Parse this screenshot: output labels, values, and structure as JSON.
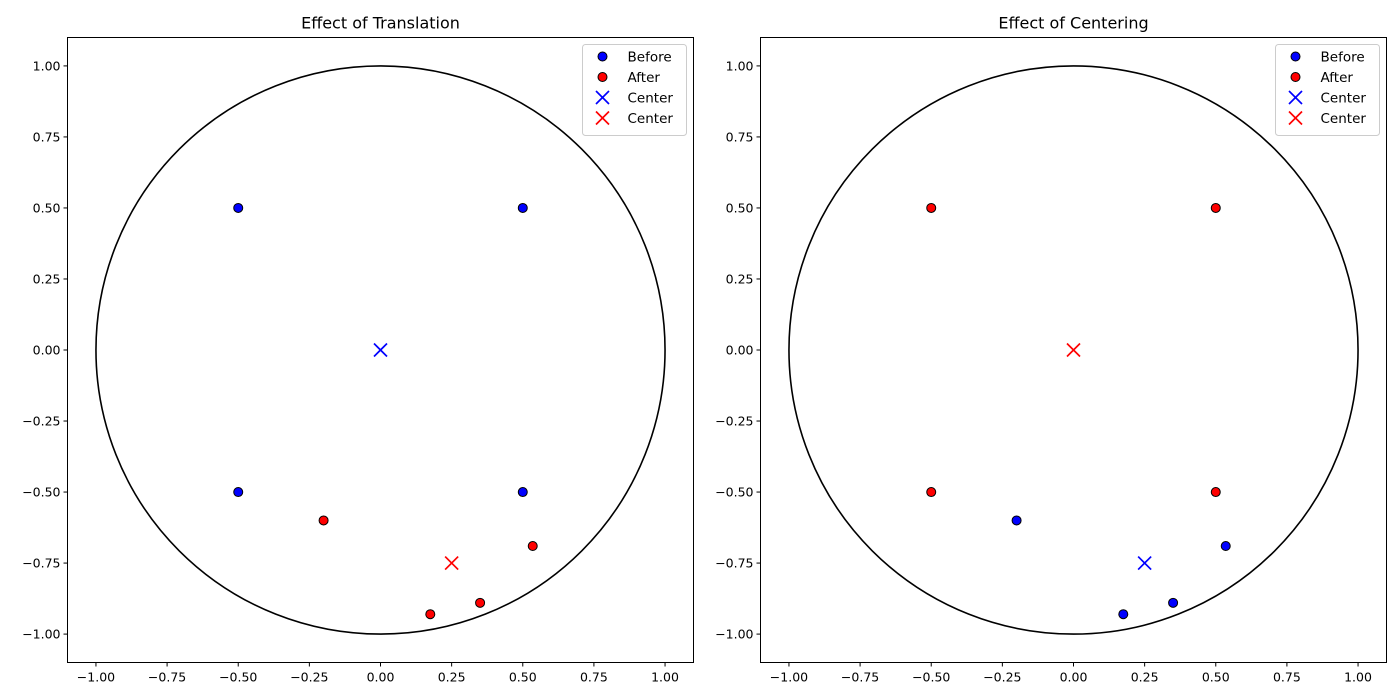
{
  "chart_data": [
    {
      "type": "scatter",
      "title": "Effect of Translation",
      "xlabel": "",
      "ylabel": "",
      "xlim": [
        -1.1,
        1.1
      ],
      "ylim": [
        -1.1,
        1.1
      ],
      "xticks": [
        -1.0,
        -0.75,
        -0.5,
        -0.25,
        0.0,
        0.25,
        0.5,
        0.75,
        1.0
      ],
      "yticks": [
        -1.0,
        -0.75,
        -0.5,
        -0.25,
        0.0,
        0.25,
        0.5,
        0.75,
        1.0
      ],
      "xtick_labels": [
        "−1.00",
        "−0.75",
        "−0.50",
        "−0.25",
        "0.00",
        "0.25",
        "0.50",
        "0.75",
        "1.00"
      ],
      "ytick_labels": [
        "−1.00",
        "−0.75",
        "−0.50",
        "−0.25",
        "0.00",
        "0.25",
        "0.50",
        "0.75",
        "1.00"
      ],
      "grid": false,
      "legend_position": "top-right",
      "unit_circle": {
        "center": [
          0,
          0
        ],
        "radius": 1.0
      },
      "series": [
        {
          "name": "Before",
          "marker": "circle",
          "color": "#0000ff",
          "points": [
            [
              -0.5,
              0.5
            ],
            [
              0.5,
              0.5
            ],
            [
              -0.5,
              -0.5
            ],
            [
              0.5,
              -0.5
            ]
          ]
        },
        {
          "name": "After",
          "marker": "circle",
          "color": "#ff0000",
          "points": [
            [
              -0.2,
              -0.6
            ],
            [
              0.535,
              -0.69
            ],
            [
              0.35,
              -0.89
            ],
            [
              0.175,
              -0.93
            ]
          ]
        },
        {
          "name": "Center",
          "marker": "x",
          "color": "#0000ff",
          "points": [
            [
              0.0,
              0.0
            ]
          ]
        },
        {
          "name": "Center",
          "marker": "x",
          "color": "#ff0000",
          "points": [
            [
              0.25,
              -0.75
            ]
          ]
        }
      ]
    },
    {
      "type": "scatter",
      "title": "Effect of Centering",
      "xlabel": "",
      "ylabel": "",
      "xlim": [
        -1.1,
        1.1
      ],
      "ylim": [
        -1.1,
        1.1
      ],
      "xticks": [
        -1.0,
        -0.75,
        -0.5,
        -0.25,
        0.0,
        0.25,
        0.5,
        0.75,
        1.0
      ],
      "yticks": [
        -1.0,
        -0.75,
        -0.5,
        -0.25,
        0.0,
        0.25,
        0.5,
        0.75,
        1.0
      ],
      "xtick_labels": [
        "−1.00",
        "−0.75",
        "−0.50",
        "−0.25",
        "0.00",
        "0.25",
        "0.50",
        "0.75",
        "1.00"
      ],
      "ytick_labels": [
        "−1.00",
        "−0.75",
        "−0.50",
        "−0.25",
        "0.00",
        "0.25",
        "0.50",
        "0.75",
        "1.00"
      ],
      "grid": false,
      "legend_position": "top-right",
      "unit_circle": {
        "center": [
          0,
          0
        ],
        "radius": 1.0
      },
      "series": [
        {
          "name": "Before",
          "marker": "circle",
          "color": "#0000ff",
          "points": [
            [
              -0.2,
              -0.6
            ],
            [
              0.535,
              -0.69
            ],
            [
              0.35,
              -0.89
            ],
            [
              0.175,
              -0.93
            ]
          ]
        },
        {
          "name": "After",
          "marker": "circle",
          "color": "#ff0000",
          "points": [
            [
              -0.5,
              0.5
            ],
            [
              0.5,
              0.5
            ],
            [
              -0.5,
              -0.5
            ],
            [
              0.5,
              -0.5
            ]
          ]
        },
        {
          "name": "Center",
          "marker": "x",
          "color": "#0000ff",
          "points": [
            [
              0.25,
              -0.75
            ]
          ]
        },
        {
          "name": "Center",
          "marker": "x",
          "color": "#ff0000",
          "points": [
            [
              0.0,
              0.0
            ]
          ]
        }
      ]
    }
  ]
}
